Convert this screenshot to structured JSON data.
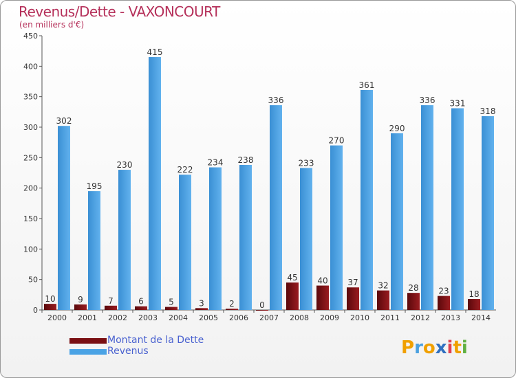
{
  "title": "Revenus/Dette - VAXONCOURT",
  "subtitle": "(en milliers d'€)",
  "logo": {
    "letters": [
      "P",
      "r",
      "o",
      "x",
      "i",
      "t",
      "i"
    ],
    "colors": [
      "#f0a000",
      "#4aa0e0",
      "#f0a000",
      "#3070c0",
      "#e04050",
      "#f0a000",
      "#60b040"
    ]
  },
  "colors": {
    "debt": "#7a0f12",
    "revenue": "#4aa3e5",
    "title": "#b5305a",
    "legend_text": "#4a62d0"
  },
  "chart_data": {
    "type": "bar",
    "categories": [
      "2000",
      "2001",
      "2002",
      "2003",
      "2004",
      "2005",
      "2006",
      "2007",
      "2008",
      "2009",
      "2010",
      "2011",
      "2012",
      "2013",
      "2014"
    ],
    "series": [
      {
        "name": "Montant de la Dette",
        "values": [
          10,
          9,
          7,
          6,
          5,
          3,
          2,
          0,
          45,
          40,
          37,
          32,
          28,
          23,
          18
        ]
      },
      {
        "name": "Revenus",
        "values": [
          302,
          195,
          230,
          415,
          222,
          234,
          238,
          336,
          233,
          270,
          361,
          290,
          336,
          331,
          318
        ]
      }
    ],
    "ylim": [
      0,
      450
    ],
    "yticks": [
      0,
      50,
      100,
      150,
      200,
      250,
      300,
      350,
      400,
      450
    ],
    "grid": false,
    "legend": "bottom-left"
  }
}
